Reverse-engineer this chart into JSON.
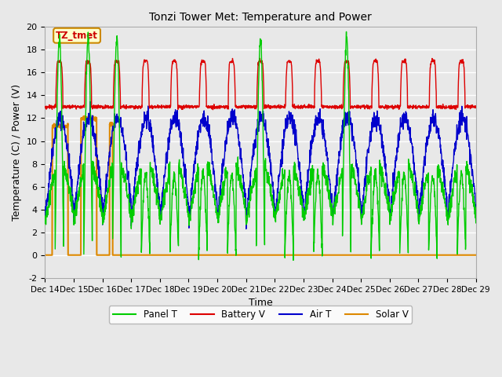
{
  "title": "Tonzi Tower Met: Temperature and Power",
  "xlabel": "Time",
  "ylabel": "Temperature (C) / Power (V)",
  "ylim": [
    -2,
    20
  ],
  "xlim": [
    0,
    15
  ],
  "x_tick_labels": [
    "Dec 14",
    "Dec 15",
    "Dec 16",
    "Dec 17",
    "Dec 18",
    "Dec 19",
    "Dec 20",
    "Dec 21",
    "Dec 22",
    "Dec 23",
    "Dec 24",
    "Dec 25",
    "Dec 26",
    "Dec 27",
    "Dec 28",
    "Dec 29"
  ],
  "yticks": [
    -2,
    0,
    2,
    4,
    6,
    8,
    10,
    12,
    14,
    16,
    18,
    20
  ],
  "annotation_text": "TZ_tmet",
  "annotation_bg": "#ffffcc",
  "annotation_border": "#cc8800",
  "annotation_text_color": "#cc0000",
  "bg_color": "#e8e8e8",
  "grid_color": "#ffffff",
  "colors": {
    "panel_t": "#00cc00",
    "battery_v": "#dd0000",
    "air_t": "#0000cc",
    "solar_v": "#dd8800"
  },
  "legend_labels": [
    "Panel T",
    "Battery V",
    "Air T",
    "Solar V"
  ]
}
